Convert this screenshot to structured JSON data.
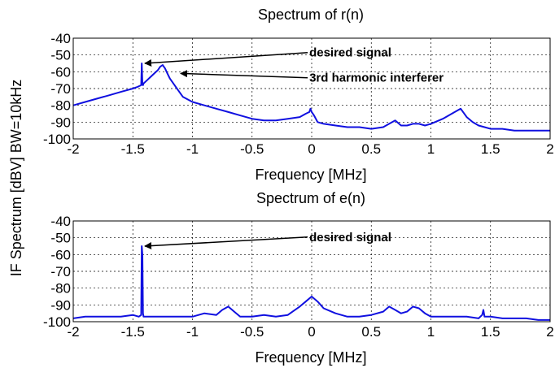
{
  "figure": {
    "ylabel": "IF Spectrum [dBV] BW=10kHz"
  },
  "chart_data": [
    {
      "type": "line",
      "title": "Spectrum of r(n)",
      "xlabel": "Frequency [MHz]",
      "ylabel": "IF Spectrum [dBV] BW=10kHz",
      "xlim": [
        -2,
        2
      ],
      "ylim": [
        -100,
        -40
      ],
      "xticks": [
        "-2",
        "-1.5",
        "-1",
        "-0.5",
        "0",
        "0.5",
        "1",
        "1.5",
        "2"
      ],
      "yticks": [
        "-40",
        "-50",
        "-60",
        "-70",
        "-80",
        "-90",
        "-100"
      ],
      "grid": true,
      "line_color": "#1010e0",
      "series": [
        {
          "x": [
            -2.0,
            -1.9,
            -1.8,
            -1.7,
            -1.6,
            -1.5,
            -1.46,
            -1.43,
            -1.425,
            -1.42,
            -1.415,
            -1.41,
            -1.38,
            -1.35,
            -1.32,
            -1.29,
            -1.27,
            -1.25,
            -1.23,
            -1.21,
            -1.19,
            -1.16,
            -1.12,
            -1.08,
            -1.0,
            -0.9,
            -0.8,
            -0.7,
            -0.6,
            -0.5,
            -0.4,
            -0.3,
            -0.2,
            -0.1,
            -0.05,
            -0.02,
            -0.01,
            0.0,
            0.01,
            0.02,
            0.05,
            0.1,
            0.2,
            0.3,
            0.4,
            0.5,
            0.6,
            0.65,
            0.7,
            0.75,
            0.8,
            0.85,
            0.9,
            0.95,
            1.0,
            1.1,
            1.2,
            1.25,
            1.3,
            1.35,
            1.4,
            1.45,
            1.5,
            1.6,
            1.7,
            1.8,
            1.9,
            2.0
          ],
          "y": [
            -80,
            -78,
            -76,
            -74,
            -72,
            -70,
            -69,
            -68,
            -55,
            -67,
            -68,
            -67,
            -65,
            -63,
            -61,
            -59,
            -57,
            -56,
            -58,
            -61,
            -64,
            -67,
            -71,
            -75,
            -78,
            -80,
            -82,
            -84,
            -86,
            -88,
            -89,
            -89,
            -88,
            -87,
            -85,
            -84,
            -82,
            -84,
            -85,
            -86,
            -90,
            -91,
            -92,
            -93,
            -93,
            -94,
            -93,
            -91,
            -89,
            -92,
            -92,
            -91,
            -91,
            -92,
            -91,
            -88,
            -84,
            -82,
            -87,
            -90,
            -92,
            -93,
            -94,
            -94,
            -95,
            -95,
            -95,
            -95
          ]
        }
      ],
      "annotations": [
        {
          "text": "desired signal",
          "point_x": -1.42,
          "point_y": -55,
          "text_x": -0.02,
          "text_y": -51
        },
        {
          "text": "3rd harmonic interferer",
          "point_x": -1.12,
          "point_y": -61,
          "text_x": -0.02,
          "text_y": -66
        }
      ]
    },
    {
      "type": "line",
      "title": "Spectrum of e(n)",
      "xlabel": "Frequency [MHz]",
      "ylabel": "IF Spectrum [dBV] BW=10kHz",
      "xlim": [
        -2,
        2
      ],
      "ylim": [
        -100,
        -40
      ],
      "xticks": [
        "-2",
        "-1.5",
        "-1",
        "-0.5",
        "0",
        "0.5",
        "1",
        "1.5",
        "2"
      ],
      "yticks": [
        "-40",
        "-50",
        "-60",
        "-70",
        "-80",
        "-90",
        "-100"
      ],
      "grid": true,
      "line_color": "#1010e0",
      "series": [
        {
          "x": [
            -2.0,
            -1.9,
            -1.8,
            -1.7,
            -1.6,
            -1.5,
            -1.45,
            -1.43,
            -1.425,
            -1.42,
            -1.415,
            -1.41,
            -1.35,
            -1.2,
            -1.0,
            -0.9,
            -0.8,
            -0.75,
            -0.7,
            -0.65,
            -0.6,
            -0.5,
            -0.4,
            -0.3,
            -0.2,
            -0.1,
            -0.05,
            0.0,
            0.05,
            0.1,
            0.2,
            0.3,
            0.4,
            0.5,
            0.6,
            0.65,
            0.7,
            0.75,
            0.8,
            0.85,
            0.9,
            0.95,
            1.0,
            1.1,
            1.2,
            1.3,
            1.4,
            1.43,
            1.44,
            1.45,
            1.5,
            1.6,
            1.7,
            1.8,
            1.9,
            2.0
          ],
          "y": [
            -98,
            -97,
            -97,
            -97,
            -97,
            -96,
            -97,
            -96,
            -55,
            -60,
            -95,
            -97,
            -97,
            -97,
            -97,
            -95,
            -96,
            -93,
            -91,
            -94,
            -97,
            -97,
            -96,
            -97,
            -96,
            -91,
            -88,
            -85,
            -88,
            -92,
            -95,
            -97,
            -97,
            -96,
            -94,
            -91,
            -93,
            -95,
            -94,
            -91,
            -92,
            -95,
            -97,
            -97,
            -97,
            -97,
            -98,
            -96,
            -93,
            -97,
            -97,
            -98,
            -98,
            -98,
            -99,
            -99
          ]
        }
      ],
      "annotations": [
        {
          "text": "desired signal",
          "point_x": -1.42,
          "point_y": -55,
          "text_x": -0.02,
          "text_y": -52
        }
      ]
    }
  ]
}
